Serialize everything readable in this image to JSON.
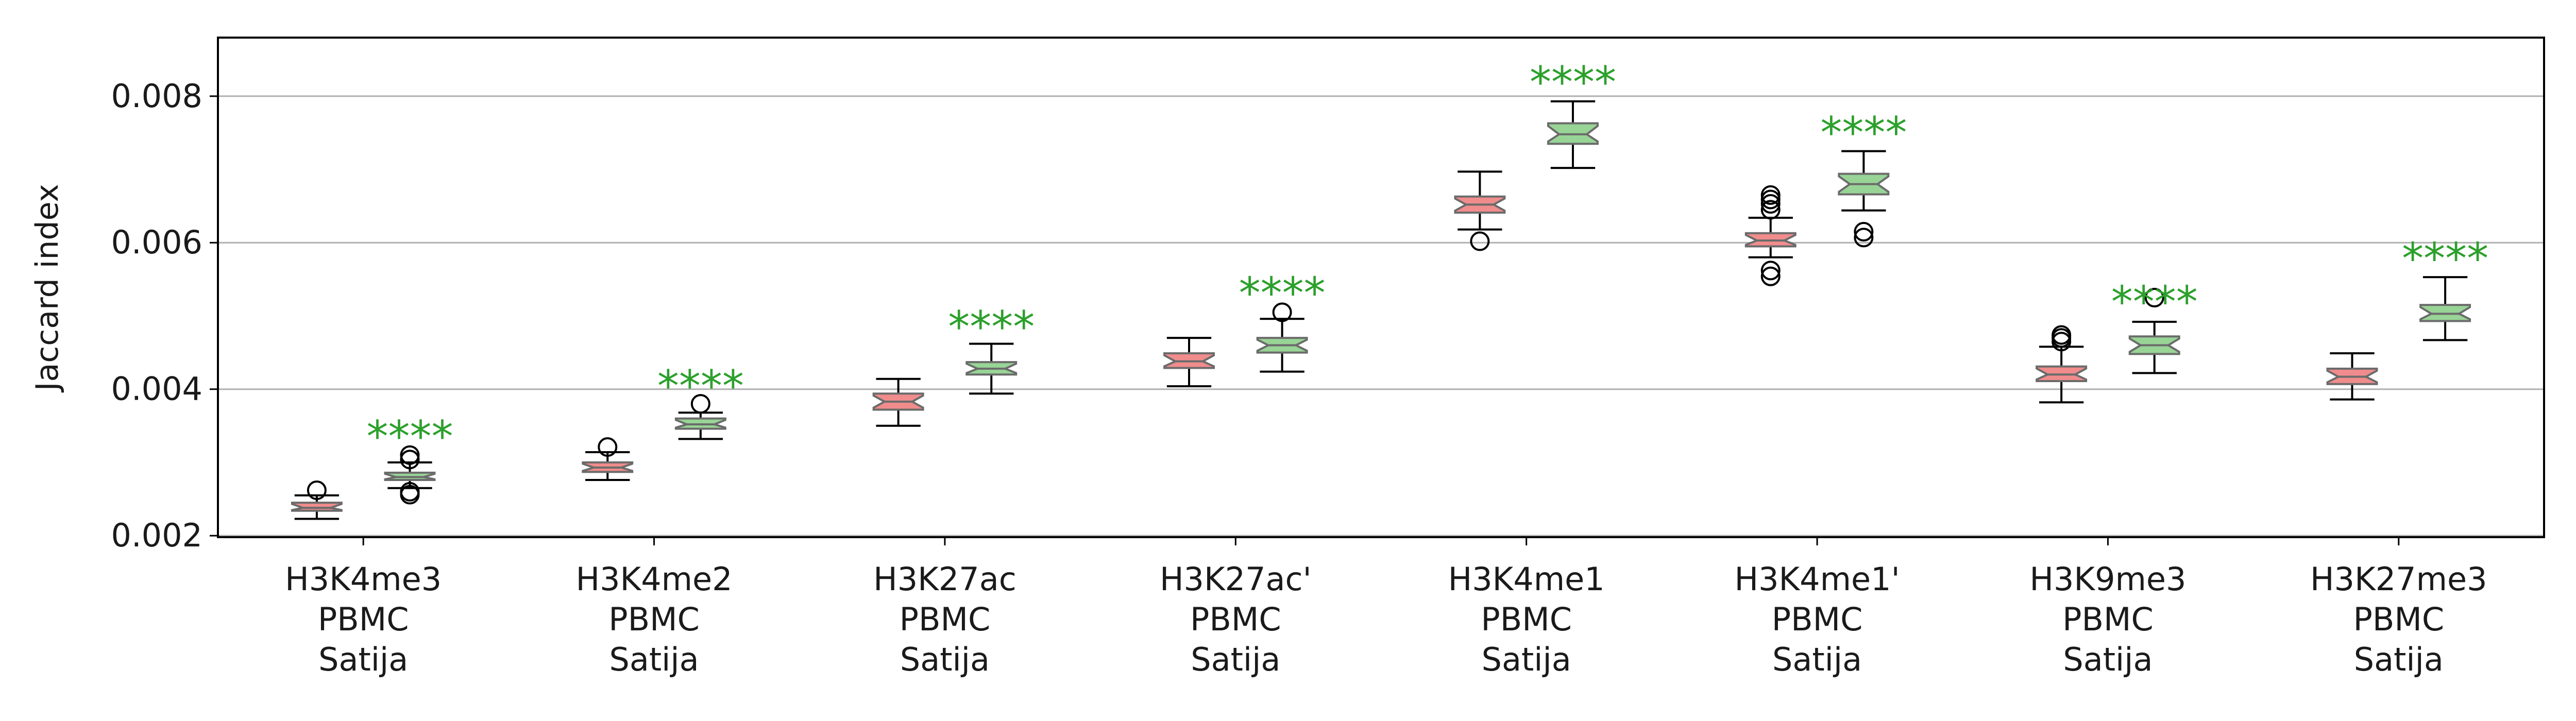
{
  "chart_data": {
    "type": "box",
    "ylabel": "Jaccard index",
    "xlabel": "",
    "ylim": [
      0.00198,
      0.0088
    ],
    "yticks": [
      "0.002",
      "0.004",
      "0.006",
      "0.008"
    ],
    "ytick_values": [
      0.002,
      0.004,
      0.006,
      0.008
    ],
    "grid": "horizontal",
    "notched": true,
    "colors": {
      "series_a": "#f08c8c",
      "series_b": "#98d496",
      "edge": "#6b6b6b",
      "significance": "#2ca02c",
      "grid": "#b0b0b0"
    },
    "categories": [
      {
        "lines": [
          "H3K4me3",
          "PBMC",
          "Satija"
        ]
      },
      {
        "lines": [
          "H3K4me2",
          "PBMC",
          "Satija"
        ]
      },
      {
        "lines": [
          "H3K27ac",
          "PBMC",
          "Satija"
        ]
      },
      {
        "lines": [
          "H3K27ac'",
          "PBMC",
          "Satija"
        ]
      },
      {
        "lines": [
          "H3K4me1",
          "PBMC",
          "Satija"
        ]
      },
      {
        "lines": [
          "H3K4me1'",
          "PBMC",
          "Satija"
        ]
      },
      {
        "lines": [
          "H3K9me3",
          "PBMC",
          "Satija"
        ]
      },
      {
        "lines": [
          "H3K27me3",
          "PBMC",
          "Satija"
        ]
      }
    ],
    "series": [
      {
        "color": "#f08c8c",
        "boxes": [
          {
            "whislo": 0.00223,
            "q1": 0.00234,
            "med": 0.00238,
            "q3": 0.00245,
            "whishi": 0.00255,
            "fliers": [
              0.00262
            ]
          },
          {
            "whislo": 0.00276,
            "q1": 0.00287,
            "med": 0.00293,
            "q3": 0.003,
            "whishi": 0.00314,
            "fliers": [
              0.00321
            ]
          },
          {
            "whislo": 0.0035,
            "q1": 0.00372,
            "med": 0.00383,
            "q3": 0.00394,
            "whishi": 0.00414,
            "fliers": []
          },
          {
            "whislo": 0.00404,
            "q1": 0.00429,
            "med": 0.00438,
            "q3": 0.00449,
            "whishi": 0.0047,
            "fliers": []
          },
          {
            "whislo": 0.00618,
            "q1": 0.00641,
            "med": 0.00652,
            "q3": 0.00663,
            "whishi": 0.00697,
            "fliers": [
              0.00602
            ]
          },
          {
            "whislo": 0.0058,
            "q1": 0.00595,
            "med": 0.00603,
            "q3": 0.00613,
            "whishi": 0.00634,
            "fliers": [
              0.00554,
              0.00562,
              0.00645,
              0.00653,
              0.00659,
              0.00665
            ]
          },
          {
            "whislo": 0.00382,
            "q1": 0.00411,
            "med": 0.0042,
            "q3": 0.00431,
            "whishi": 0.00458,
            "fliers": [
              0.00465,
              0.0047,
              0.00474
            ]
          },
          {
            "whislo": 0.00386,
            "q1": 0.00407,
            "med": 0.00417,
            "q3": 0.00428,
            "whishi": 0.00449,
            "fliers": []
          }
        ]
      },
      {
        "color": "#98d496",
        "boxes": [
          {
            "whislo": 0.00265,
            "q1": 0.00276,
            "med": 0.0028,
            "q3": 0.00286,
            "whishi": 0.003,
            "fliers": [
              0.00256,
              0.0026,
              0.00304,
              0.0031
            ]
          },
          {
            "whislo": 0.00332,
            "q1": 0.00346,
            "med": 0.00352,
            "q3": 0.0036,
            "whishi": 0.00368,
            "fliers": [
              0.0038
            ]
          },
          {
            "whislo": 0.00394,
            "q1": 0.0042,
            "med": 0.00428,
            "q3": 0.00437,
            "whishi": 0.00462,
            "fliers": []
          },
          {
            "whislo": 0.00424,
            "q1": 0.0045,
            "med": 0.0046,
            "q3": 0.0047,
            "whishi": 0.00496,
            "fliers": [
              0.00505
            ]
          },
          {
            "whislo": 0.00702,
            "q1": 0.00735,
            "med": 0.00748,
            "q3": 0.00763,
            "whishi": 0.00793,
            "fliers": []
          },
          {
            "whislo": 0.00644,
            "q1": 0.00666,
            "med": 0.0068,
            "q3": 0.00694,
            "whishi": 0.00725,
            "fliers": [
              0.00607,
              0.00615
            ]
          },
          {
            "whislo": 0.00422,
            "q1": 0.00448,
            "med": 0.0046,
            "q3": 0.00472,
            "whishi": 0.00492,
            "fliers": [
              0.00525
            ]
          },
          {
            "whislo": 0.00467,
            "q1": 0.00493,
            "med": 0.00503,
            "q3": 0.00515,
            "whishi": 0.00553,
            "fliers": []
          }
        ]
      }
    ],
    "annotations": [
      {
        "text": "****",
        "category_index": 0,
        "y": 0.00336
      },
      {
        "text": "****",
        "category_index": 1,
        "y": 0.00405
      },
      {
        "text": "****",
        "category_index": 2,
        "y": 0.00486
      },
      {
        "text": "****",
        "category_index": 3,
        "y": 0.00532
      },
      {
        "text": "****",
        "category_index": 4,
        "y": 0.0082
      },
      {
        "text": "****",
        "category_index": 5,
        "y": 0.00751
      },
      {
        "text": "****",
        "category_index": 6,
        "y": 0.0052
      },
      {
        "text": "****",
        "category_index": 7,
        "y": 0.00579
      }
    ]
  }
}
